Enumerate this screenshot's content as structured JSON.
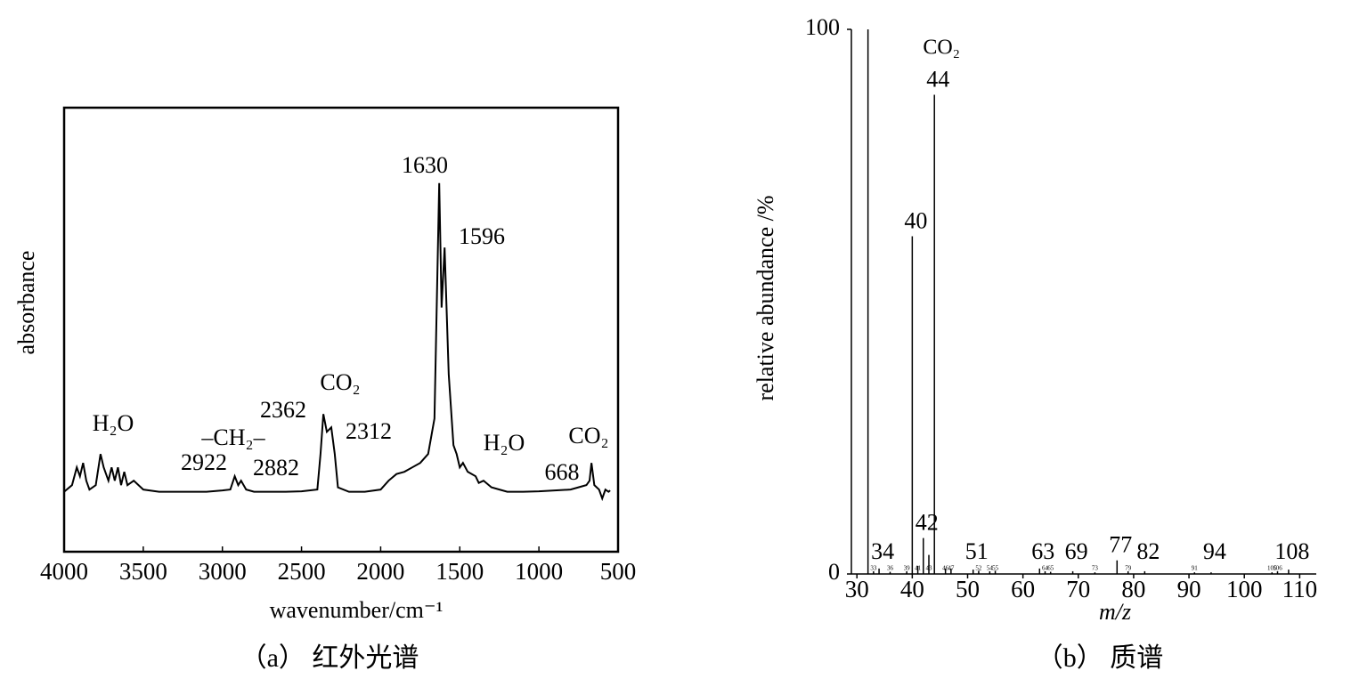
{
  "chart_data": [
    {
      "type": "line",
      "caption": "（a） 红外光谱",
      "xlabel": "wavenumber/cm⁻¹",
      "ylabel": "absorbance",
      "xlim": [
        4000,
        500
      ],
      "xticks": [
        4000,
        3500,
        3000,
        2500,
        2000,
        1500,
        1000,
        500
      ],
      "ylim": [
        0,
        100
      ],
      "x": [
        4000,
        3950,
        3920,
        3900,
        3880,
        3860,
        3840,
        3800,
        3770,
        3750,
        3720,
        3700,
        3680,
        3660,
        3640,
        3620,
        3600,
        3560,
        3500,
        3400,
        3300,
        3200,
        3100,
        3000,
        2950,
        2922,
        2900,
        2882,
        2850,
        2800,
        2700,
        2600,
        2500,
        2400,
        2380,
        2362,
        2340,
        2312,
        2290,
        2270,
        2200,
        2100,
        2000,
        1950,
        1900,
        1850,
        1800,
        1750,
        1700,
        1660,
        1630,
        1615,
        1596,
        1570,
        1540,
        1520,
        1500,
        1480,
        1450,
        1400,
        1380,
        1350,
        1300,
        1250,
        1200,
        1100,
        1000,
        900,
        800,
        750,
        700,
        680,
        668,
        650,
        620,
        600,
        580,
        560,
        550
      ],
      "series": [
        {
          "color": "#000000",
          "values": [
            13.5,
            15,
            19,
            17,
            20,
            16,
            14,
            15,
            22,
            19,
            16,
            19,
            16,
            19,
            15,
            18,
            15,
            16,
            14,
            13.5,
            13.5,
            13.5,
            13.5,
            13.8,
            14,
            17,
            15,
            16,
            14,
            13.5,
            13.5,
            13.5,
            13.6,
            14,
            22,
            31,
            27,
            28,
            22,
            14.5,
            13.5,
            13.5,
            14,
            16,
            17.5,
            18,
            19,
            20,
            22,
            30,
            83,
            55,
            68.5,
            40,
            24,
            22,
            19,
            20,
            18,
            17,
            15.5,
            16,
            14.5,
            14,
            13.5,
            13.5,
            13.6,
            13.8,
            14,
            14.5,
            15,
            16,
            20,
            15,
            14,
            12,
            14,
            13.5,
            13.8
          ]
        }
      ],
      "annotations": [
        "H₂O",
        "–CH₂–",
        "2922",
        "2882",
        "CO₂",
        "2362",
        "2312",
        "1630",
        "1596",
        "H₂O",
        "668",
        "CO₂"
      ]
    },
    {
      "type": "stem",
      "caption": "（b） 质谱",
      "xlabel": "m/z",
      "ylabel": "relative abundance /%",
      "xlim": [
        29,
        113
      ],
      "xticks": [
        30,
        40,
        50,
        60,
        70,
        80,
        90,
        100,
        110
      ],
      "ylim": [
        0,
        100
      ],
      "yticks": [
        0,
        100
      ],
      "annotations": [
        "CO₂"
      ],
      "series": [
        {
          "color": "#000000",
          "x": [
            32,
            34,
            40,
            42,
            44,
            51,
            63,
            69,
            77,
            82,
            94,
            108
          ],
          "values": [
            100,
            1,
            62,
            6.6,
            88,
            0.8,
            1,
            0.5,
            2.5,
            0.5,
            0.3,
            0.8
          ],
          "labels": [
            null,
            "34",
            "40",
            "42",
            "44",
            "51",
            "63",
            "69",
            "77",
            "82",
            "94",
            "108"
          ]
        },
        {
          "color": "#000000",
          "x": [
            33,
            36,
            39,
            41,
            43,
            46,
            47,
            52,
            54,
            55,
            64,
            65,
            73,
            79,
            91,
            105,
            106
          ],
          "values": [
            0.5,
            0.4,
            0.5,
            1.5,
            3.5,
            1,
            1,
            0.6,
            0.5,
            0.6,
            0.5,
            0.4,
            0.3,
            0.5,
            0.3,
            0.3,
            0.5
          ],
          "labels": [
            "33",
            "36",
            "39",
            "41",
            "43",
            "46",
            "47",
            "52",
            "54",
            "55",
            "64",
            "65",
            "73",
            "79",
            "91",
            "105",
            "106"
          ]
        }
      ]
    }
  ]
}
